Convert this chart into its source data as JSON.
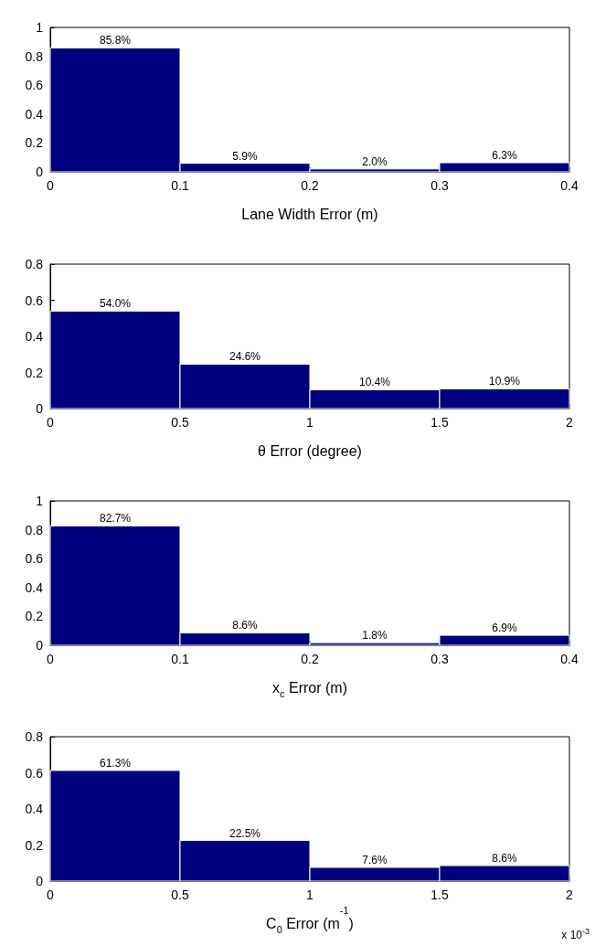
{
  "chart_data": [
    {
      "type": "histogram",
      "xlabel": "Lane Width Error (m)",
      "bins": [
        0,
        0.1,
        0.2,
        0.3,
        0.4
      ],
      "values": [
        0.858,
        0.059,
        0.02,
        0.063
      ],
      "value_labels": [
        "85.8%",
        "5.9%",
        "2.0%",
        "6.3%"
      ],
      "color": "#00007f",
      "xlim": [
        0,
        0.4
      ],
      "xticks": [
        0,
        0.1,
        0.2,
        0.3,
        0.4
      ],
      "ylim": [
        0,
        1
      ],
      "yticks": [
        0,
        0.2,
        0.4,
        0.6,
        0.8,
        1
      ],
      "grid": false
    },
    {
      "type": "histogram",
      "xlabel": "θ Error (degree)",
      "bins": [
        0,
        0.5,
        1,
        1.5,
        2
      ],
      "values": [
        0.54,
        0.246,
        0.104,
        0.109
      ],
      "value_labels": [
        "54.0%",
        "24.6%",
        "10.4%",
        "10.9%"
      ],
      "color": "#00007f",
      "xlim": [
        0,
        2
      ],
      "xticks": [
        0,
        0.5,
        1,
        1.5,
        2
      ],
      "ylim": [
        0,
        0.8
      ],
      "yticks": [
        0,
        0.2,
        0.4,
        0.6,
        0.8
      ],
      "grid": false
    },
    {
      "type": "histogram",
      "xlabel": "x$_{c}$ Error (m)",
      "bins": [
        0,
        0.1,
        0.2,
        0.3,
        0.4
      ],
      "values": [
        0.827,
        0.086,
        0.018,
        0.069
      ],
      "value_labels": [
        "82.7%",
        "8.6%",
        "1.8%",
        "6.9%"
      ],
      "color": "#00007f",
      "xlim": [
        0,
        0.4
      ],
      "xticks": [
        0,
        0.1,
        0.2,
        0.3,
        0.4
      ],
      "ylim": [
        0,
        1
      ],
      "yticks": [
        0,
        0.2,
        0.4,
        0.6,
        0.8,
        1
      ],
      "grid": false
    },
    {
      "type": "histogram",
      "xlabel": "C$_{0}$ Error (m$^{-1}$)",
      "bins": [
        0,
        0.5,
        1,
        1.5,
        2
      ],
      "values": [
        0.613,
        0.225,
        0.076,
        0.086
      ],
      "value_labels": [
        "61.3%",
        "22.5%",
        "7.6%",
        "8.6%"
      ],
      "color": "#00007f",
      "xlim": [
        0,
        2
      ],
      "xticks": [
        0,
        0.5,
        1,
        1.5,
        2
      ],
      "ylim": [
        0,
        0.8
      ],
      "yticks": [
        0,
        0.2,
        0.4,
        0.6,
        0.8
      ],
      "grid": false,
      "annotations": [
        "x 10$^{-3}$"
      ]
    }
  ]
}
